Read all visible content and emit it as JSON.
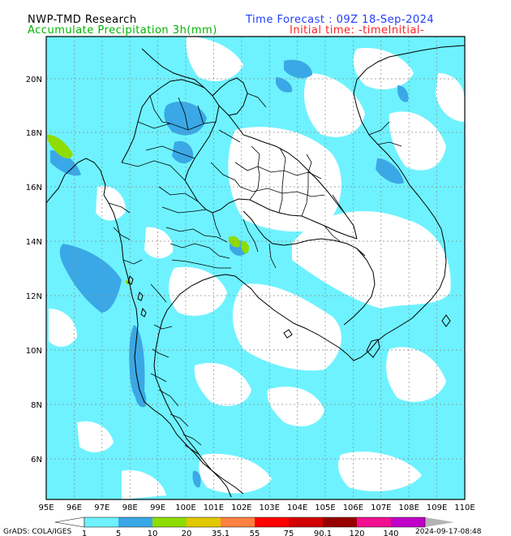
{
  "header": {
    "title_left": "NWP-TMD Research",
    "subtitle_left": "Accumulate Precipitation 3h(mm)",
    "title_right": "Time Forecast : 09Z 18-Sep-2024",
    "subtitle_right": "Initial time: -timeInitial-"
  },
  "map": {
    "lon_labels": [
      "95E",
      "96E",
      "97E",
      "98E",
      "99E",
      "100E",
      "101E",
      "102E",
      "103E",
      "104E",
      "105E",
      "106E",
      "107E",
      "108E",
      "109E",
      "110E"
    ],
    "lat_labels": [
      "20N",
      "18N",
      "16N",
      "14N",
      "12N",
      "10N",
      "8N",
      "6N"
    ],
    "lon_range": [
      95,
      110
    ],
    "lat_range": [
      4.6,
      21.6
    ],
    "grid": true
  },
  "legend": {
    "labels": [
      "1",
      "5",
      "10",
      "20",
      "35.1",
      "55",
      "75",
      "90.1",
      "120",
      "140"
    ],
    "colors": [
      "#6ef2ff",
      "#3aa8e6",
      "#8fdc00",
      "#e2c800",
      "#ff8040",
      "#ff0000",
      "#d20000",
      "#980000",
      "#f01090",
      "#c000c8",
      "#b4b4b4"
    ]
  },
  "footer": {
    "grads": "GrADS: COLA/IGES",
    "timestamp": "2024-09-17-08:48"
  }
}
